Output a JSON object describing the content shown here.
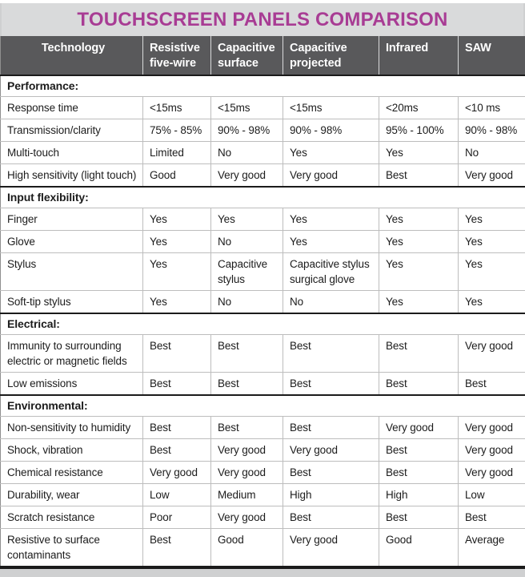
{
  "title": "TOUCHSCREEN PANELS COMPARISON",
  "colors": {
    "title_text": "#a83c94",
    "title_bar_bg": "#d9dadb",
    "header_bg": "#59595b",
    "header_text": "#ffffff",
    "grid_line": "#bdbdbd",
    "section_line": "#1b1b1b",
    "body_bg": "#ffffff"
  },
  "chart_data": {
    "type": "table",
    "title": "TOUCHSCREEN PANELS COMPARISON",
    "columns": [
      "Technology",
      "Resistive five-wire",
      "Capacitive surface",
      "Capacitive projected",
      "Infrared",
      "SAW"
    ],
    "sections": [
      {
        "label": "Performance:",
        "rows": [
          {
            "label": "Response time",
            "values": [
              "<15ms",
              "<15ms",
              "<15ms",
              "<20ms",
              "<10 ms"
            ]
          },
          {
            "label": "Transmission/clarity",
            "values": [
              "75% - 85%",
              "90% - 98%",
              "90% - 98%",
              "95% - 100%",
              "90% - 98%"
            ]
          },
          {
            "label": "Multi-touch",
            "values": [
              "Limited",
              "No",
              "Yes",
              "Yes",
              "No"
            ]
          },
          {
            "label": "High sensitivity (light touch)",
            "values": [
              "Good",
              "Very good",
              "Very good",
              "Best",
              "Very good"
            ]
          }
        ]
      },
      {
        "label": "Input flexibility:",
        "rows": [
          {
            "label": "Finger",
            "values": [
              "Yes",
              "Yes",
              "Yes",
              "Yes",
              "Yes"
            ]
          },
          {
            "label": "Glove",
            "values": [
              "Yes",
              "No",
              "Yes",
              "Yes",
              "Yes"
            ]
          },
          {
            "label": "Stylus",
            "values": [
              "Yes",
              "Capacitive stylus",
              "Capacitive stylus surgical glove",
              "Yes",
              "Yes"
            ]
          },
          {
            "label": "Soft-tip stylus",
            "values": [
              "Yes",
              "No",
              "No",
              "Yes",
              "Yes"
            ]
          }
        ]
      },
      {
        "label": "Electrical:",
        "rows": [
          {
            "label": "Immunity to surrounding electric or magnetic fields",
            "values": [
              "Best",
              "Best",
              "Best",
              "Best",
              "Very good"
            ]
          },
          {
            "label": "Low emissions",
            "values": [
              "Best",
              "Best",
              "Best",
              "Best",
              "Best"
            ]
          }
        ]
      },
      {
        "label": "Environmental:",
        "rows": [
          {
            "label": "Non-sensitivity to humidity",
            "values": [
              "Best",
              "Best",
              "Best",
              "Very good",
              "Very good"
            ]
          },
          {
            "label": "Shock, vibration",
            "values": [
              "Best",
              "Very good",
              "Very good",
              "Best",
              "Very good"
            ]
          },
          {
            "label": "Chemical resistance",
            "values": [
              "Very good",
              "Very good",
              "Best",
              "Best",
              "Very good"
            ]
          },
          {
            "label": "Durability, wear",
            "values": [
              "Low",
              "Medium",
              "High",
              "High",
              "Low"
            ]
          },
          {
            "label": "Scratch resistance",
            "values": [
              "Poor",
              "Very good",
              "Best",
              "Best",
              "Best"
            ]
          },
          {
            "label": "Resistive to surface contaminants",
            "values": [
              "Best",
              "Good",
              "Very good",
              "Good",
              "Average"
            ]
          }
        ]
      }
    ]
  }
}
